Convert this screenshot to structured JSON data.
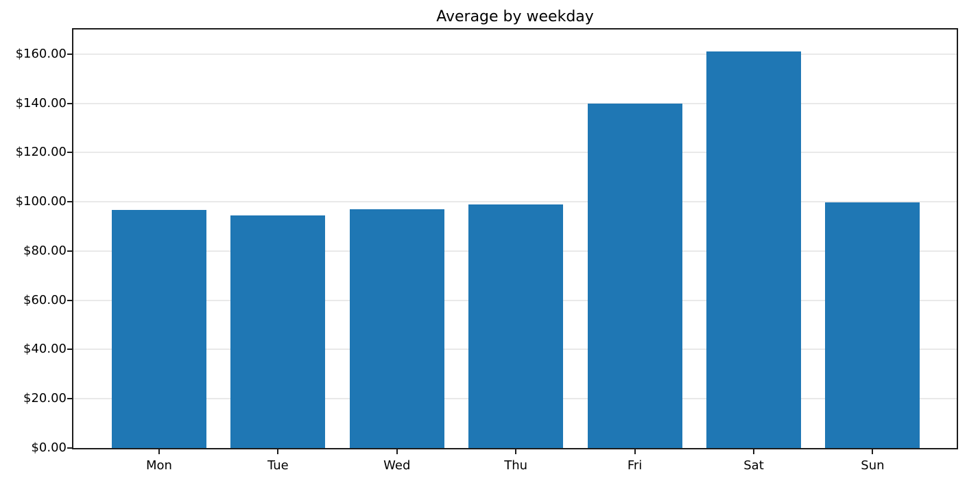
{
  "figure": {
    "title": "Average by weekday"
  },
  "chart_data": {
    "type": "bar",
    "title": "Average by weekday",
    "categories": [
      "Mon",
      "Tue",
      "Wed",
      "Thu",
      "Fri",
      "Sat",
      "Sun"
    ],
    "values": [
      96.8,
      94.5,
      97.1,
      98.8,
      139.8,
      161.2,
      99.7
    ],
    "xlabel": "",
    "ylabel": "",
    "ylim": [
      0,
      170
    ],
    "yticks": [
      {
        "value": 0,
        "label": "$0.00"
      },
      {
        "value": 20,
        "label": "$20.00"
      },
      {
        "value": 40,
        "label": "$40.00"
      },
      {
        "value": 60,
        "label": "$60.00"
      },
      {
        "value": 80,
        "label": "$80.00"
      },
      {
        "value": 100,
        "label": "$100.00"
      },
      {
        "value": 120,
        "label": "$120.00"
      },
      {
        "value": 140,
        "label": "$140.00"
      },
      {
        "value": 160,
        "label": "$160.00"
      }
    ],
    "grid": "horizontal",
    "legend": "none",
    "colors": {
      "bar": "#1f77b4",
      "grid": "#e9e9e9",
      "spine": "#1c1c1c",
      "text": "#000000",
      "background": "#ffffff"
    }
  }
}
